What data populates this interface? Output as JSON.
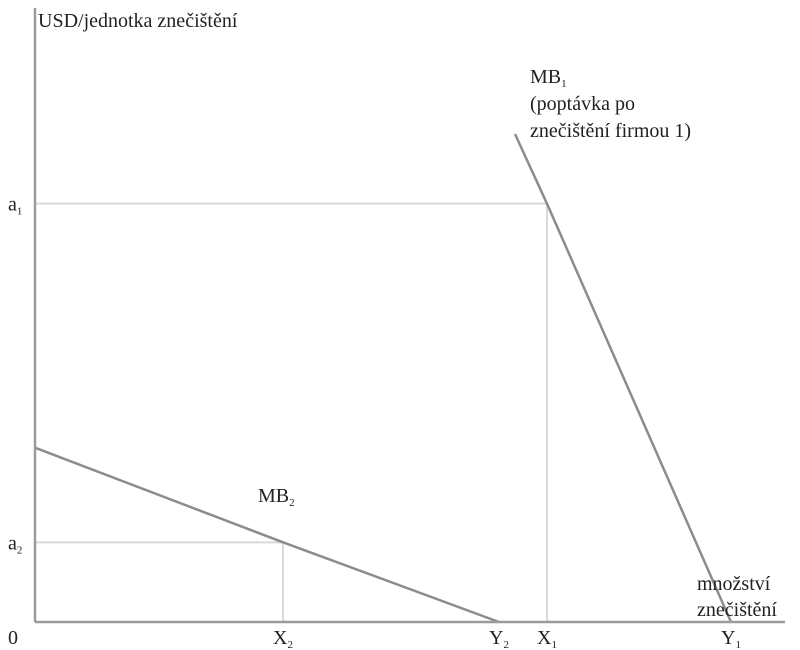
{
  "chart_data": {
    "type": "line",
    "title": "",
    "ylabel": "USD/jednotka znečištění",
    "xlabel": [
      "množství",
      "znečištění"
    ],
    "origin_label": "0",
    "xlim": [
      0,
      10
    ],
    "ylim": [
      0,
      10
    ],
    "x_ticks": [
      {
        "id": "X2",
        "base": "X",
        "sub": "2",
        "x": 3.1
      },
      {
        "id": "Y2",
        "base": "Y",
        "sub": "2",
        "x": 5.8
      },
      {
        "id": "X1",
        "base": "X",
        "sub": "1",
        "x": 6.4
      },
      {
        "id": "Y1",
        "base": "Y",
        "sub": "1",
        "x": 8.7
      }
    ],
    "y_ticks": [
      {
        "id": "a1",
        "base": "a",
        "sub": "1",
        "y": 8.4
      },
      {
        "id": "a2",
        "base": "a",
        "sub": "2",
        "y": 1.6
      }
    ],
    "series": [
      {
        "id": "MB1",
        "label_base": "MB",
        "label_sub": "1",
        "annotation": [
          "(poptávka po",
          "znečištění firmou 1)"
        ],
        "points": [
          [
            6.0,
            9.8
          ],
          [
            6.4,
            8.4
          ],
          [
            8.7,
            0
          ]
        ]
      },
      {
        "id": "MB2",
        "label_base": "MB",
        "label_sub": "2",
        "points": [
          [
            0,
            3.5
          ],
          [
            3.1,
            1.6
          ],
          [
            5.8,
            0
          ]
        ]
      }
    ],
    "guides": [
      {
        "from": [
          0,
          8.4
        ],
        "to": [
          6.4,
          8.4
        ]
      },
      {
        "from": [
          6.4,
          8.4
        ],
        "to": [
          6.4,
          0
        ]
      },
      {
        "from": [
          0,
          1.6
        ],
        "to": [
          3.1,
          1.6
        ]
      },
      {
        "from": [
          3.1,
          1.6
        ],
        "to": [
          3.1,
          0
        ]
      }
    ],
    "grid": false,
    "legend": "none",
    "colors": {
      "axis": "#9b9b9b",
      "curve": "#8c8c8c",
      "guide": "#d9d9d9",
      "text": "#222222"
    }
  }
}
